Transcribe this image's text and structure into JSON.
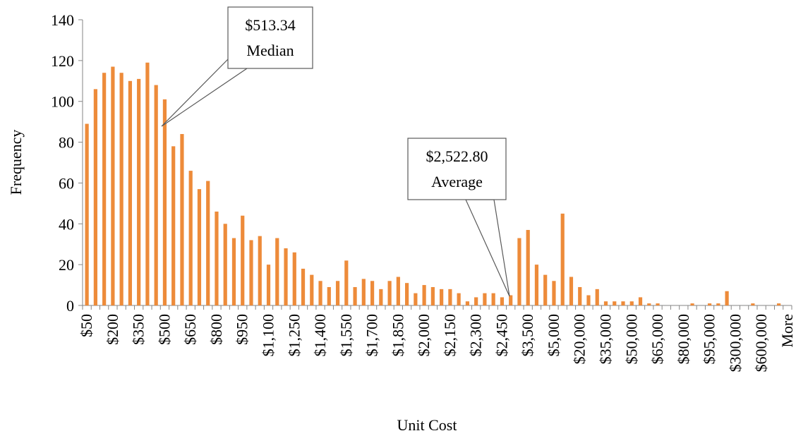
{
  "chart_data": {
    "type": "bar",
    "x_label": "Unit Cost",
    "y_label": "Frequency",
    "categories": [
      "$50",
      null,
      null,
      "$200",
      null,
      null,
      "$350",
      null,
      null,
      "$500",
      null,
      null,
      "$650",
      null,
      null,
      "$800",
      null,
      null,
      "$950",
      null,
      null,
      "$1,100",
      null,
      null,
      "$1,250",
      null,
      null,
      "$1,400",
      null,
      null,
      "$1,550",
      null,
      null,
      "$1,700",
      null,
      null,
      "$1,850",
      null,
      null,
      "$2,000",
      null,
      null,
      "$2,150",
      null,
      null,
      "$2,300",
      null,
      null,
      "$2,450",
      null,
      null,
      "$3,500",
      null,
      null,
      "$5,000",
      null,
      null,
      "$20,000",
      null,
      null,
      "$35,000",
      null,
      null,
      "$50,000",
      null,
      null,
      "$65,000",
      null,
      null,
      "$80,000",
      null,
      null,
      "$95,000",
      null,
      null,
      "$300,000",
      null,
      null,
      "$600,000",
      null,
      null,
      "More"
    ],
    "values": [
      89,
      106,
      114,
      117,
      114,
      110,
      111,
      119,
      108,
      101,
      78,
      84,
      66,
      57,
      61,
      46,
      40,
      33,
      44,
      32,
      34,
      20,
      33,
      28,
      26,
      18,
      15,
      12,
      9,
      12,
      22,
      9,
      13,
      12,
      8,
      12,
      14,
      11,
      6,
      10,
      9,
      8,
      8,
      6,
      2,
      4,
      6,
      6,
      4,
      5,
      33,
      37,
      20,
      15,
      12,
      45,
      14,
      9,
      5,
      8,
      2,
      2,
      2,
      2,
      4,
      1,
      1,
      0,
      0,
      0,
      1,
      0,
      1,
      1,
      7,
      0,
      0,
      1,
      0,
      0,
      1,
      0
    ],
    "color": "#ed8b3a",
    "ylim": [
      0,
      140
    ],
    "yticks": [
      0,
      20,
      40,
      60,
      80,
      100,
      120,
      140
    ],
    "annotations": [
      {
        "lines": [
          "$513.34",
          "Median"
        ]
      },
      {
        "lines": [
          "$2,522.80",
          "Average"
        ]
      }
    ]
  }
}
